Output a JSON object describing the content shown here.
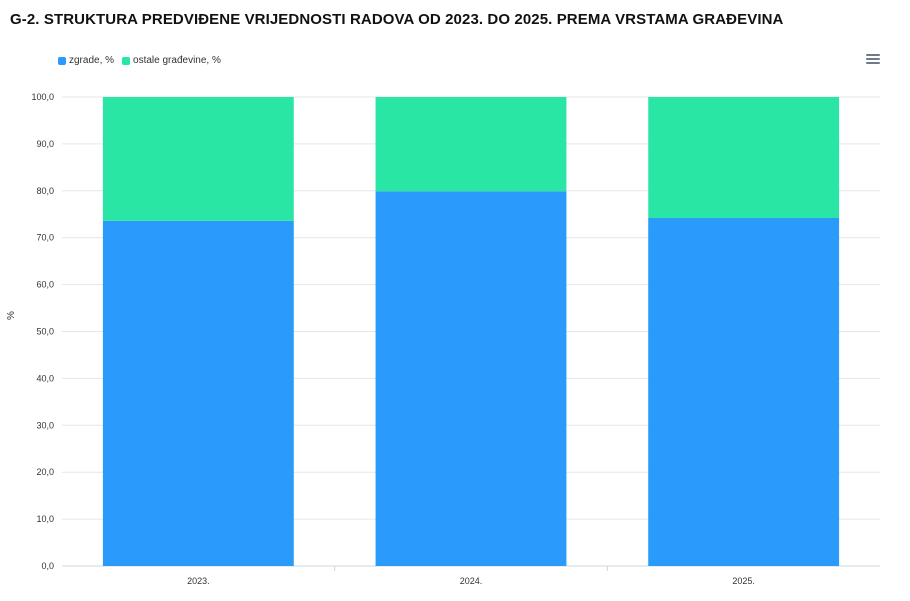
{
  "title": "G-2. STRUKTURA PREDVIĐENE VRIJEDNOSTI RADOVA OD 2023. DO 2025. PREMA VRSTAMA GRAĐEVINA",
  "menu_icon": "hamburger-menu-icon",
  "chart_data": {
    "type": "bar",
    "stacked": true,
    "categories": [
      "2023.",
      "2024.",
      "2025."
    ],
    "series": [
      {
        "name": "zgrade, %",
        "color": "#2a9bfa",
        "values": [
          73.6,
          79.9,
          74.2
        ]
      },
      {
        "name": "ostale građevine, %",
        "color": "#2ae6a4",
        "values": [
          26.4,
          20.1,
          25.8
        ]
      }
    ],
    "xlabel": "",
    "ylabel": "%",
    "ylim": [
      0,
      100
    ],
    "yticks": [
      "0,0",
      "10,0",
      "20,0",
      "30,0",
      "40,0",
      "50,0",
      "60,0",
      "70,0",
      "80,0",
      "90,0",
      "100,0"
    ],
    "grid": true,
    "legend": "top-left"
  }
}
